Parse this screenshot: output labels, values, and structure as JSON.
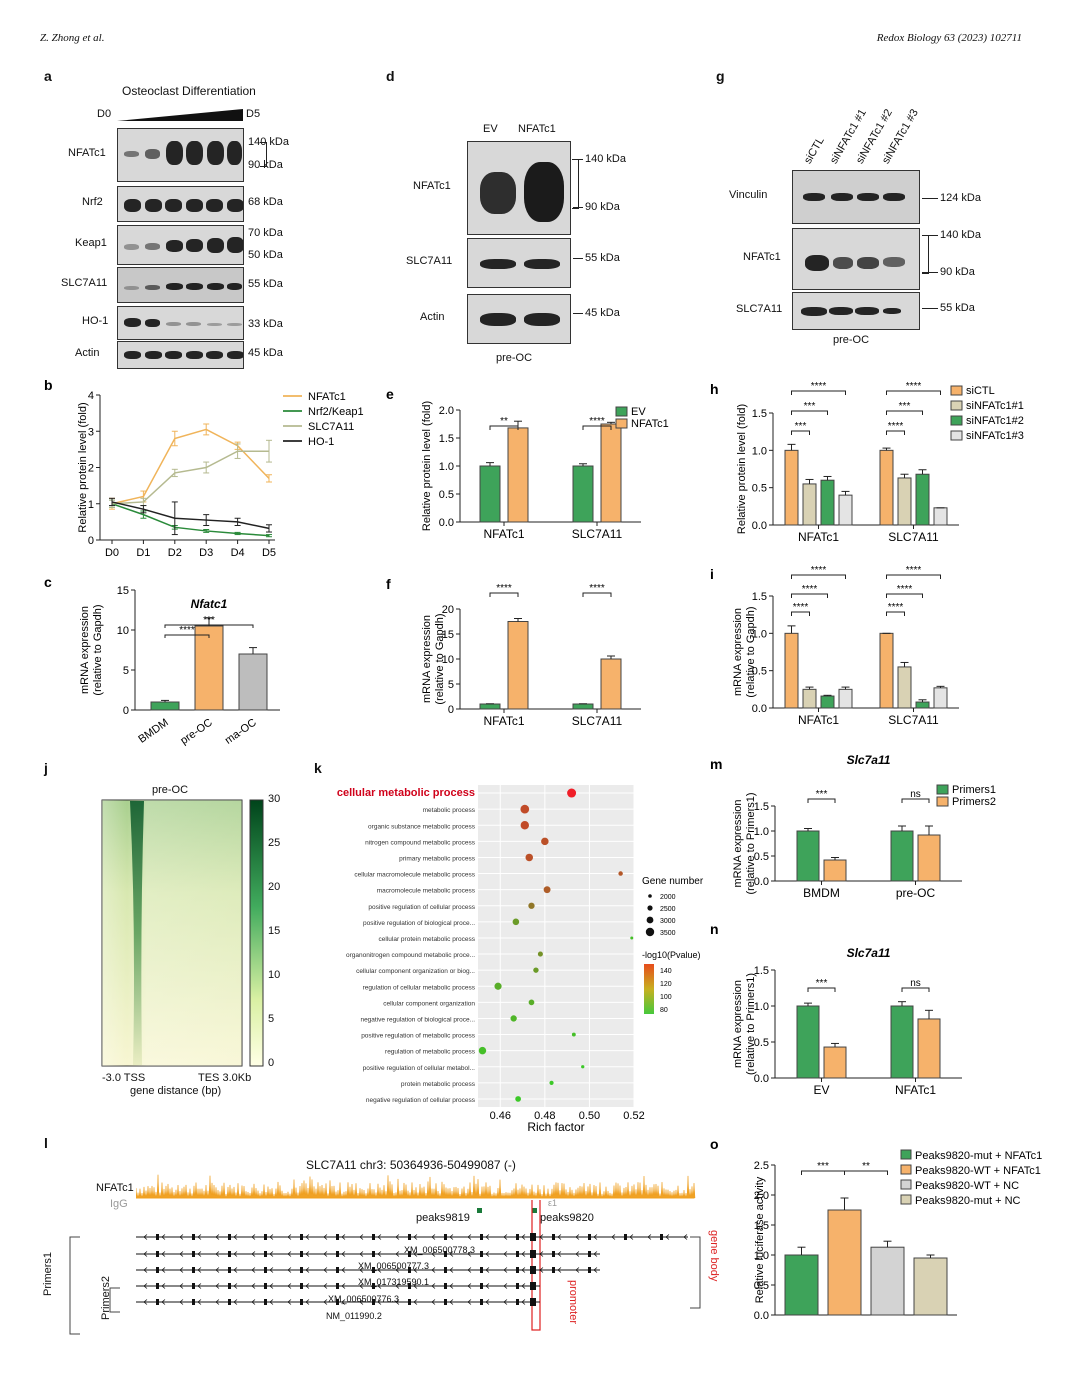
{
  "header": {
    "left": "Z. Zhong et al.",
    "right": "Redox Biology 63 (2023) 102711"
  },
  "panels": {
    "a": {
      "label": "a",
      "title": "Osteoclast Differentiation",
      "d0": "D0",
      "d5": "D5",
      "rows": [
        {
          "name": "NFATc1",
          "kda": [
            "140 kDa",
            "90 kDa"
          ]
        },
        {
          "name": "Nrf2",
          "kda": [
            "68 kDa"
          ]
        },
        {
          "name": "Keap1",
          "kda": [
            "70 kDa",
            "50 kDa"
          ]
        },
        {
          "name": "SLC7A11",
          "kda": [
            "55 kDa"
          ]
        },
        {
          "name": "HO-1",
          "kda": [
            "33 kDa"
          ]
        },
        {
          "name": "Actin",
          "kda": [
            "45 kDa"
          ]
        }
      ]
    },
    "d": {
      "label": "d",
      "lanes": [
        "EV",
        "NFATc1"
      ],
      "rows": [
        {
          "name": "NFATc1",
          "kda": [
            "140 kDa",
            "90 kDa"
          ]
        },
        {
          "name": "SLC7A11",
          "kda": [
            "55 kDa"
          ]
        },
        {
          "name": "Actin",
          "kda": [
            "45 kDa"
          ]
        }
      ],
      "footer": "pre-OC"
    },
    "g": {
      "label": "g",
      "lanes": [
        "siCTL",
        "siNFATc1 #1",
        "siNFATc1 #2",
        "siNFATc1 #3"
      ],
      "rows": [
        {
          "name": "Vinculin",
          "kda": [
            "124 kDa"
          ]
        },
        {
          "name": "NFATc1",
          "kda": [
            "140 kDa",
            "90 kDa"
          ]
        },
        {
          "name": "SLC7A11",
          "kda": [
            "55 kDa"
          ]
        }
      ],
      "footer": "pre-OC"
    },
    "j": {
      "label": "j",
      "title": "pre-OC",
      "x_ticks": [
        "-3.0 TSS",
        "TES 3.0Kb"
      ],
      "xlabel": "gene distance (bp)",
      "scale": [
        "30",
        "25",
        "20",
        "15",
        "10",
        "5",
        "0"
      ]
    },
    "k": {
      "label": "k"
    },
    "l": {
      "label": "l",
      "title": "SLC7A11  chr3: 50364936-50499087 (-)",
      "tracks": [
        "NFATc1",
        "IgG"
      ],
      "peaks": [
        "peaks9819",
        "peaks9820"
      ],
      "transcripts": [
        "XM_006500778.3",
        "XM_006500777.3",
        "XM_017319590.1",
        "XM_006500776.3",
        "NM_011990.2"
      ],
      "primers": [
        "Primers1",
        "Primers2"
      ],
      "gene_body": "gene body",
      "promoter": "promoter",
      "mark": "ε1"
    }
  },
  "chart_data": [
    {
      "id": "b",
      "type": "line",
      "label": "b",
      "xlabel": "",
      "ylabel": "Relative protein level (fold)",
      "ylim": [
        0,
        4
      ],
      "categories": [
        "D0",
        "D1",
        "D2",
        "D3",
        "D4",
        "D5"
      ],
      "series": [
        {
          "name": "NFATc1",
          "color": "#f0b45a",
          "values": [
            1.0,
            1.2,
            2.8,
            3.05,
            2.6,
            1.7
          ],
          "err": [
            0.15,
            0.15,
            0.2,
            0.15,
            0.1,
            0.1
          ]
        },
        {
          "name": "Nrf2/Keap1",
          "color": "#2a8a3a",
          "values": [
            1.0,
            0.7,
            0.35,
            0.25,
            0.18,
            0.12
          ],
          "err": [
            0.1,
            0.1,
            0.05,
            0.04,
            0.03,
            0.03
          ]
        },
        {
          "name": "SLC7A11",
          "color": "#b5ba90",
          "values": [
            1.0,
            1.05,
            1.85,
            2.0,
            2.45,
            2.45
          ],
          "err": [
            0.1,
            0.1,
            0.1,
            0.15,
            0.2,
            0.3
          ]
        },
        {
          "name": "HO-1",
          "color": "#222222",
          "values": [
            1.05,
            0.85,
            0.6,
            0.55,
            0.5,
            0.32
          ],
          "err": [
            0.1,
            0.1,
            0.45,
            0.15,
            0.1,
            0.1
          ]
        }
      ],
      "yticks": [
        "0",
        "1",
        "2",
        "3",
        "4"
      ]
    },
    {
      "id": "c",
      "type": "bar",
      "label": "c",
      "title": "Nfatc1",
      "ylabel": "mRNA expression",
      "ylabel2": "(relative to Gapdh)",
      "ylim": [
        0,
        15
      ],
      "yticks": [
        "0",
        "5",
        "10",
        "15"
      ],
      "categories": [
        "BMDM",
        "pre-OC",
        "ma-OC"
      ],
      "values": [
        1.0,
        10.5,
        7.0
      ],
      "err": [
        0.2,
        1.0,
        0.8
      ],
      "colors": [
        "#3ea35a",
        "#f6b26b",
        "#bdbdbd"
      ],
      "sig": [
        {
          "a": 0,
          "b": 1,
          "t": "****"
        },
        {
          "a": 0,
          "b": 2,
          "t": "***"
        }
      ]
    },
    {
      "id": "e",
      "type": "bar",
      "label": "e",
      "ylabel": "Relative protein level (fold)",
      "ylim": [
        0,
        2.0
      ],
      "yticks": [
        "0.0",
        "0.5",
        "1.0",
        "1.5",
        "2.0"
      ],
      "categories": [
        "NFATc1",
        "SLC7A11"
      ],
      "series": [
        {
          "name": "EV",
          "color": "#3ea35a",
          "values": [
            1.0,
            1.0
          ],
          "err": [
            0.06,
            0.04
          ]
        },
        {
          "name": "NFATc1",
          "color": "#f6b26b",
          "values": [
            1.68,
            1.75
          ],
          "err": [
            0.12,
            0.03
          ]
        }
      ],
      "sig": [
        "**",
        "****"
      ]
    },
    {
      "id": "f",
      "type": "bar",
      "label": "f",
      "ylabel": "mRNA expression",
      "ylabel2": "(relative to Gapdh)",
      "ylim": [
        0,
        20
      ],
      "yticks": [
        "0",
        "5",
        "10",
        "15",
        "20"
      ],
      "categories": [
        "NFATc1",
        "SLC7A11"
      ],
      "series": [
        {
          "name": "EV",
          "color": "#3ea35a",
          "values": [
            1.0,
            1.0
          ],
          "err": [
            0.05,
            0.05
          ]
        },
        {
          "name": "NFATc1",
          "color": "#f6b26b",
          "values": [
            17.5,
            10.0
          ],
          "err": [
            0.6,
            0.6
          ]
        }
      ],
      "sig": [
        "****",
        "****"
      ]
    },
    {
      "id": "h",
      "type": "bar",
      "label": "h",
      "ylabel": "Relative protein level (fold)",
      "ylim": [
        0,
        1.5
      ],
      "yticks": [
        "0.0",
        "0.5",
        "1.0",
        "1.5"
      ],
      "categories": [
        "NFATc1",
        "SLC7A11"
      ],
      "series": [
        {
          "name": "siCTL",
          "color": "#f6b26b",
          "values": [
            1.0,
            1.0
          ],
          "err": [
            0.08,
            0.03
          ]
        },
        {
          "name": "siNFATc1#1",
          "color": "#d9d2b4",
          "values": [
            0.55,
            0.63
          ],
          "err": [
            0.06,
            0.05
          ]
        },
        {
          "name": "siNFATc1#2",
          "color": "#3ea35a",
          "values": [
            0.6,
            0.68
          ],
          "err": [
            0.05,
            0.06
          ]
        },
        {
          "name": "siNFATc1#3",
          "color": "#e4e4e4",
          "values": [
            0.4,
            0.23
          ],
          "err": [
            0.05,
            0.0
          ]
        }
      ],
      "sig": [
        "***",
        "***",
        "****"
      ],
      "sig2": [
        "****",
        "***",
        "****"
      ]
    },
    {
      "id": "i",
      "type": "bar",
      "label": "i",
      "ylabel": "mRNA expression",
      "ylabel2": "(relative to Gapdh)",
      "ylim": [
        0,
        1.5
      ],
      "yticks": [
        "0.0",
        "0.5",
        "1.0",
        "1.5"
      ],
      "categories": [
        "NFATc1",
        "SLC7A11"
      ],
      "series": [
        {
          "name": "siCTL",
          "color": "#f6b26b",
          "values": [
            1.0,
            1.0
          ],
          "err": [
            0.1,
            0.0
          ]
        },
        {
          "name": "siNFATc1#1",
          "color": "#d9d2b4",
          "values": [
            0.25,
            0.55
          ],
          "err": [
            0.03,
            0.06
          ]
        },
        {
          "name": "siNFATc1#2",
          "color": "#3ea35a",
          "values": [
            0.16,
            0.08
          ],
          "err": [
            0.01,
            0.03
          ]
        },
        {
          "name": "siNFATc1#3",
          "color": "#e4e4e4",
          "values": [
            0.25,
            0.27
          ],
          "err": [
            0.03,
            0.02
          ]
        }
      ],
      "sig": [
        "****",
        "****",
        "****"
      ],
      "sig2": [
        "****",
        "****",
        "****"
      ]
    },
    {
      "id": "k",
      "type": "scatter",
      "label": "k",
      "xlabel": "Rich factor",
      "xticks": [
        "0.46",
        "0.48",
        "0.50",
        "0.52"
      ],
      "xlim": [
        0.45,
        0.52
      ],
      "terms": [
        "cellular metabolic process",
        "metabolic process",
        "organic substance metabolic process",
        "nitrogen compound metabolic process",
        "primary metabolic process",
        "cellular macromolecule metabolic process",
        "macromolecule metabolic process",
        "positive regulation of cellular process",
        "positive regulation of biological proce...",
        "cellular protein metabolic process",
        "organonitrogen compound metabolic proce...",
        "cellular component organization or biog...",
        "regulation of cellular metabolic process",
        "cellular component organization",
        "negative regulation of biological proce...",
        "positive regulation of metabolic process",
        "regulation of metabolic process",
        "positive regulation of cellular metabol...",
        "protein metabolic process",
        "negative regulation of cellular process"
      ],
      "rich": [
        0.492,
        0.471,
        0.471,
        0.48,
        0.473,
        0.514,
        0.481,
        0.474,
        0.467,
        0.519,
        0.478,
        0.476,
        0.459,
        0.474,
        0.466,
        0.493,
        0.452,
        0.497,
        0.483,
        0.468
      ],
      "size": [
        3500,
        3400,
        3300,
        3000,
        3000,
        2000,
        2800,
        2600,
        2700,
        1500,
        2200,
        2300,
        2900,
        2400,
        2600,
        1800,
        3000,
        1600,
        1900,
        2400
      ],
      "logp": [
        150,
        125,
        125,
        122,
        122,
        118,
        115,
        100,
        80,
        60,
        85,
        80,
        70,
        70,
        65,
        60,
        60,
        55,
        55,
        55
      ],
      "legend_size_title": "Gene number",
      "size_ticks": [
        "2000",
        "2500",
        "3000",
        "3500"
      ],
      "legend_color_title": "-log10(Pvalue)",
      "color_ticks": [
        "140",
        "120",
        "100",
        "80"
      ]
    },
    {
      "id": "m",
      "type": "bar",
      "label": "m",
      "title": "Slc7a11",
      "ylabel": "mRNA expression",
      "ylabel2": "(relative to Primers1)",
      "ylim": [
        0,
        1.5
      ],
      "yticks": [
        "0.0",
        "0.5",
        "1.0",
        "1.5"
      ],
      "categories": [
        "BMDM",
        "pre-OC"
      ],
      "series": [
        {
          "name": "Primers1",
          "color": "#3ea35a",
          "values": [
            1.0,
            1.0
          ],
          "err": [
            0.05,
            0.1
          ]
        },
        {
          "name": "Primers2",
          "color": "#f6b26b",
          "values": [
            0.42,
            0.92
          ],
          "err": [
            0.05,
            0.18
          ]
        }
      ],
      "sig": [
        "***",
        "ns"
      ]
    },
    {
      "id": "n",
      "type": "bar",
      "label": "n",
      "title": "Slc7a11",
      "ylabel": "mRNA expression",
      "ylabel2": "(relative to Primers1)",
      "ylim": [
        0,
        1.5
      ],
      "yticks": [
        "0.0",
        "0.5",
        "1.0",
        "1.5"
      ],
      "categories": [
        "EV",
        "NFATc1"
      ],
      "series": [
        {
          "name": "Primers1",
          "color": "#3ea35a",
          "values": [
            1.0,
            1.0
          ],
          "err": [
            0.04,
            0.06
          ]
        },
        {
          "name": "Primers2",
          "color": "#f6b26b",
          "values": [
            0.43,
            0.82
          ],
          "err": [
            0.05,
            0.12
          ]
        }
      ],
      "sig": [
        "***",
        "ns"
      ]
    },
    {
      "id": "o",
      "type": "bar",
      "label": "o",
      "ylabel": "Relative luciferase activity",
      "ylim": [
        0,
        2.5
      ],
      "yticks": [
        "0.0",
        "0.5",
        "1.0",
        "1.5",
        "2.0",
        "2.5"
      ],
      "categories": [
        "Peaks9820-mut + NFATc1",
        "Peaks9820-WT + NFATc1",
        "Peaks9820-WT + NC",
        "Peaks9820-mut + NC"
      ],
      "values": [
        1.0,
        1.75,
        1.13,
        0.95
      ],
      "err": [
        0.13,
        0.2,
        0.1,
        0.05
      ],
      "colors": [
        "#3ea35a",
        "#f6b26b",
        "#d3d3d3",
        "#d9d2b4"
      ],
      "sig": [
        "***",
        "**"
      ]
    }
  ]
}
